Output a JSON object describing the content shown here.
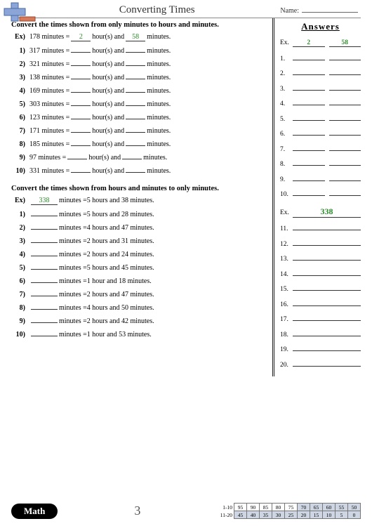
{
  "header": {
    "title": "Converting Times",
    "name_label": "Name:"
  },
  "section1": {
    "instruction": "Convert the times shown from only minutes to hours and minutes.",
    "example": {
      "idx": "Ex)",
      "minutes": "178",
      "hours": "2",
      "mins": "58"
    },
    "rows": [
      {
        "idx": "1)",
        "minutes": "317"
      },
      {
        "idx": "2)",
        "minutes": "321"
      },
      {
        "idx": "3)",
        "minutes": "138"
      },
      {
        "idx": "4)",
        "minutes": "169"
      },
      {
        "idx": "5)",
        "minutes": "303"
      },
      {
        "idx": "6)",
        "minutes": "123"
      },
      {
        "idx": "7)",
        "minutes": "171"
      },
      {
        "idx": "8)",
        "minutes": "185"
      },
      {
        "idx": "9)",
        "minutes": "97"
      },
      {
        "idx": "10)",
        "minutes": "331"
      }
    ],
    "tpl": {
      "minutes_eq": "minutes =",
      "hours_and": "hour(s) and",
      "mins_end": "minutes."
    }
  },
  "section2": {
    "instruction": "Convert the times shown from hours and minutes to only minutes.",
    "example": {
      "idx": "Ex)",
      "result": "338",
      "text": "minutes =5 hours and 38 minutes."
    },
    "rows": [
      {
        "idx": "1)",
        "text": "minutes =5 hours and 28 minutes."
      },
      {
        "idx": "2)",
        "text": "minutes =4 hours and 47 minutes."
      },
      {
        "idx": "3)",
        "text": "minutes =2 hours and 31 minutes."
      },
      {
        "idx": "4)",
        "text": "minutes =2 hours and 24 minutes."
      },
      {
        "idx": "5)",
        "text": "minutes =5 hours and 45 minutes."
      },
      {
        "idx": "6)",
        "text": "minutes =1 hour and 18 minutes."
      },
      {
        "idx": "7)",
        "text": "minutes =2 hours and 47 minutes."
      },
      {
        "idx": "8)",
        "text": "minutes =4 hours and 50 minutes."
      },
      {
        "idx": "9)",
        "text": "minutes =2 hours and 42 minutes."
      },
      {
        "idx": "10)",
        "text": "minutes =1 hour and 53 minutes."
      }
    ]
  },
  "answers": {
    "title": "Answers",
    "ex1": {
      "idx": "Ex.",
      "a": "2",
      "b": "58"
    },
    "rows1": [
      {
        "idx": "1."
      },
      {
        "idx": "2."
      },
      {
        "idx": "3."
      },
      {
        "idx": "4."
      },
      {
        "idx": "5."
      },
      {
        "idx": "6."
      },
      {
        "idx": "7."
      },
      {
        "idx": "8."
      },
      {
        "idx": "9."
      },
      {
        "idx": "10."
      }
    ],
    "ex2": {
      "idx": "Ex.",
      "a": "338"
    },
    "rows2": [
      {
        "idx": "11."
      },
      {
        "idx": "12."
      },
      {
        "idx": "13."
      },
      {
        "idx": "14."
      },
      {
        "idx": "15."
      },
      {
        "idx": "16."
      },
      {
        "idx": "17."
      },
      {
        "idx": "18."
      },
      {
        "idx": "19."
      },
      {
        "idx": "20."
      }
    ]
  },
  "footer": {
    "badge": "Math",
    "page": "3",
    "score_rows": [
      {
        "label": "1-10",
        "cells": [
          "95",
          "90",
          "85",
          "80",
          "75",
          "70",
          "65",
          "60",
          "55",
          "50"
        ],
        "shaded_from": 5
      },
      {
        "label": "11-20",
        "cells": [
          "45",
          "40",
          "35",
          "30",
          "25",
          "20",
          "15",
          "10",
          "5",
          "0"
        ],
        "shaded_from": 0
      }
    ]
  },
  "colors": {
    "green": "#2a8c2a",
    "shade": "#cdd6e2"
  }
}
